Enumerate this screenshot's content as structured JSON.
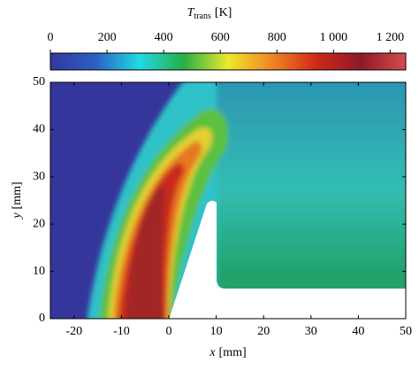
{
  "chart_data": {
    "type": "heatmap",
    "colorbar": {
      "label": {
        "symbol": "T",
        "subscript": "trans",
        "unit": "[K]"
      },
      "lim": [
        0,
        1255
      ],
      "ticks": [
        0,
        200,
        400,
        600,
        800,
        {
          "value": 1000,
          "label": "1 000"
        },
        {
          "value": 1200,
          "label": "1 200"
        }
      ],
      "colormap": [
        "#35369c",
        "#2a5fc4",
        "#22d8e4",
        "#25b048",
        "#eee82a",
        "#f08424",
        "#d0281a",
        "#8c1a28",
        "#d84c4c"
      ]
    },
    "xlabel": {
      "symbol": "x",
      "unit": "[mm]"
    },
    "ylabel": {
      "symbol": "y",
      "unit": "[mm]"
    },
    "xlim": [
      -25,
      50
    ],
    "xticks": [
      -20,
      -10,
      0,
      10,
      20,
      30,
      40,
      50
    ],
    "ylim": [
      0,
      50
    ],
    "yticks": [
      0,
      10,
      20,
      30,
      40,
      50
    ]
  }
}
